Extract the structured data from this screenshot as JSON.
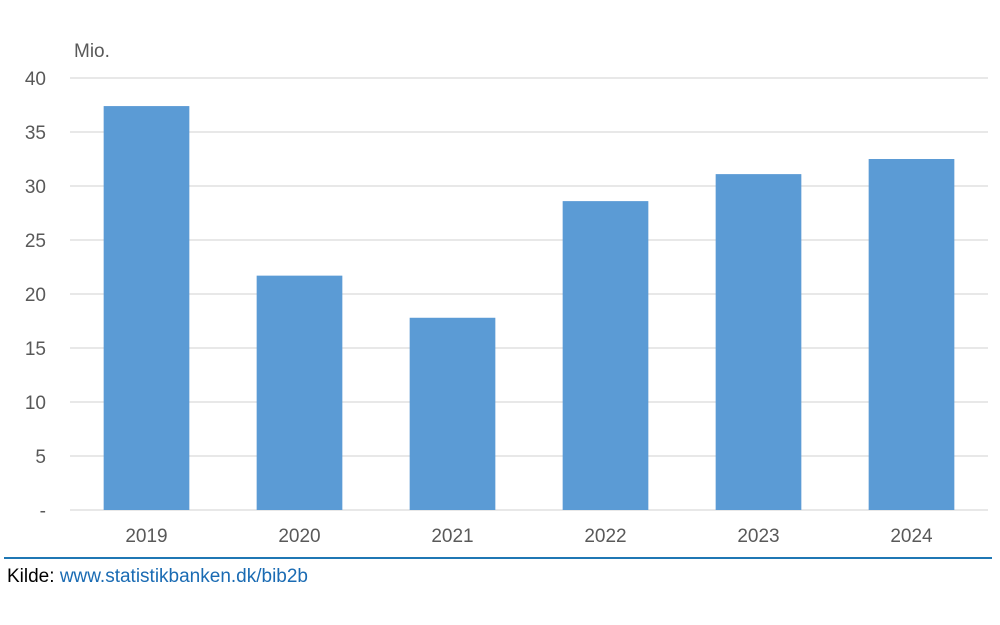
{
  "chart_data": {
    "type": "bar",
    "unit_label": "Mio.",
    "categories": [
      "2019",
      "2020",
      "2021",
      "2022",
      "2023",
      "2024"
    ],
    "values": [
      37.4,
      21.7,
      17.8,
      28.6,
      31.1,
      32.5
    ],
    "ylim": [
      0,
      40
    ],
    "yticks": [
      0,
      5,
      10,
      15,
      20,
      25,
      30,
      35,
      40
    ],
    "ytick_labels": [
      "-",
      "5",
      "10",
      "15",
      "20",
      "25",
      "30",
      "35",
      "40"
    ],
    "grid": true,
    "legend": "none"
  },
  "colors": {
    "bar": "#5b9bd5",
    "grid": "#d9d9d9",
    "axis_text": "#595959",
    "source_rule": "#1f77b4",
    "link": "#1a6bb3"
  },
  "source": {
    "label": "Kilde:",
    "link_text": "www.statistikbanken.dk/bib2b"
  }
}
